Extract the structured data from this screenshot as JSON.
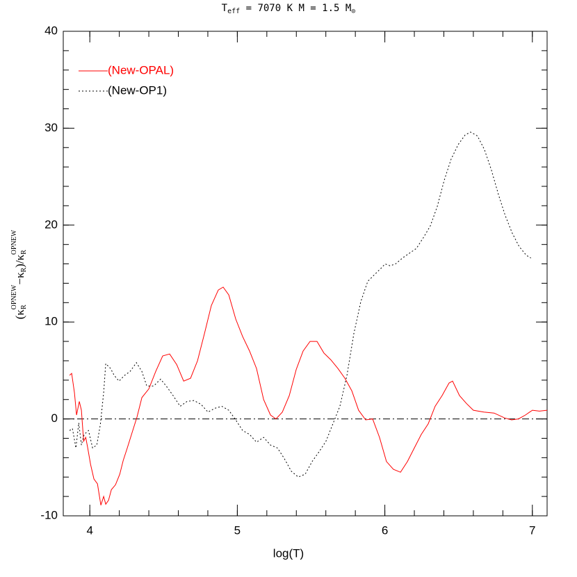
{
  "chart_data": {
    "type": "line",
    "title": [
      "T",
      "eff",
      " = 7070 K  M = 1.5 M",
      "⊙"
    ],
    "xlabel": "log(T)",
    "ylabel": [
      "(κ",
      "R",
      "OPNEW",
      "−κ",
      "R",
      ")/κ",
      "R",
      "OPNEW"
    ],
    "xlim": [
      3.82,
      7.1
    ],
    "ylim": [
      -10,
      40
    ],
    "xticks": [
      4,
      5,
      6,
      7
    ],
    "yticks": [
      -10,
      0,
      10,
      20,
      30,
      40
    ],
    "xminor_step": 0.2,
    "yminor_step": 2,
    "reference_line": 0,
    "legend": "upper left",
    "series": [
      {
        "name": "(New-OPAL)",
        "color": "#ff0000",
        "style": "solid",
        "x": [
          3.863,
          3.877,
          3.896,
          3.91,
          3.929,
          3.943,
          3.958,
          3.972,
          3.986,
          4.005,
          4.028,
          4.052,
          4.075,
          4.094,
          4.108,
          4.127,
          4.146,
          4.174,
          4.203,
          4.226,
          4.254,
          4.283,
          4.32,
          4.353,
          4.4,
          4.447,
          4.494,
          4.541,
          4.589,
          4.636,
          4.683,
          4.73,
          4.777,
          4.824,
          4.871,
          4.904,
          4.942,
          4.989,
          5.036,
          5.083,
          5.13,
          5.178,
          5.225,
          5.262,
          5.305,
          5.352,
          5.399,
          5.446,
          5.493,
          5.54,
          5.587,
          5.634,
          5.682,
          5.729,
          5.776,
          5.822,
          5.87,
          5.917,
          5.964,
          6.011,
          6.058,
          6.106,
          6.153,
          6.2,
          6.247,
          6.294,
          6.341,
          6.388,
          6.435,
          6.459,
          6.506,
          6.553,
          6.6,
          6.671,
          6.741,
          6.812,
          6.859,
          6.906,
          6.953,
          7.0,
          7.048,
          7.1
        ],
        "values": [
          4.5,
          4.7,
          2.7,
          0.4,
          1.8,
          0.9,
          -2.3,
          -1.9,
          -3.0,
          -4.7,
          -6.2,
          -6.7,
          -8.9,
          -8.0,
          -8.8,
          -8.4,
          -7.3,
          -6.8,
          -5.7,
          -4.3,
          -3.0,
          -1.6,
          0.2,
          2.2,
          3.1,
          4.9,
          6.5,
          6.7,
          5.6,
          3.9,
          4.2,
          6.0,
          8.8,
          11.7,
          13.3,
          13.6,
          12.8,
          10.3,
          8.5,
          7.0,
          5.2,
          2.0,
          0.4,
          0,
          0.7,
          2.4,
          5.1,
          7.0,
          8.0,
          8.0,
          6.8,
          6.1,
          5.2,
          4.2,
          2.9,
          0.9,
          -0.1,
          0,
          -1.9,
          -4.4,
          -5.2,
          -5.5,
          -4.4,
          -3.0,
          -1.6,
          -0.5,
          1.3,
          2.4,
          3.7,
          3.9,
          2.4,
          1.6,
          0.9,
          0.7,
          0.6,
          0.1,
          -0.1,
          0,
          0.4,
          0.9,
          0.8,
          0.9
        ]
      },
      {
        "name": "(New-OP1)",
        "color": "#000000",
        "style": "dotted",
        "x": [
          3.863,
          3.882,
          3.906,
          3.925,
          3.943,
          3.962,
          3.991,
          4.019,
          4.047,
          4.071,
          4.094,
          4.108,
          4.141,
          4.165,
          4.198,
          4.236,
          4.273,
          4.316,
          4.353,
          4.386,
          4.433,
          4.48,
          4.518,
          4.565,
          4.612,
          4.659,
          4.706,
          4.754,
          4.801,
          4.848,
          4.895,
          4.942,
          4.989,
          5.036,
          5.083,
          5.13,
          5.178,
          5.225,
          5.272,
          5.319,
          5.366,
          5.413,
          5.46,
          5.507,
          5.554,
          5.601,
          5.648,
          5.695,
          5.743,
          5.79,
          5.837,
          5.884,
          5.931,
          5.978,
          6.002,
          6.035,
          6.073,
          6.12,
          6.167,
          6.214,
          6.261,
          6.308,
          6.355,
          6.402,
          6.449,
          6.497,
          6.544,
          6.581,
          6.628,
          6.675,
          6.722,
          6.769,
          6.816,
          6.863,
          6.91,
          6.958,
          6.99
        ],
        "values": [
          -1.2,
          -1,
          -3,
          -0.4,
          -2.7,
          -1.6,
          -1.2,
          -3.0,
          -2.7,
          -0.6,
          2.7,
          5.7,
          5.2,
          4.5,
          3.9,
          4.5,
          4.9,
          5.8,
          4.9,
          3.4,
          3.4,
          4.1,
          3.4,
          2.4,
          1.3,
          1.8,
          1.9,
          1.5,
          0.7,
          1.1,
          1.3,
          0.9,
          -0.1,
          -1.2,
          -1.6,
          -2.4,
          -1.9,
          -2.7,
          -3.0,
          -4.1,
          -5.4,
          -6.0,
          -5.7,
          -4.4,
          -3.4,
          -2.3,
          -0.5,
          1.3,
          4.5,
          8.8,
          12.1,
          14.2,
          14.9,
          15.6,
          16.0,
          15.8,
          16.0,
          16.6,
          17.1,
          17.6,
          18.7,
          19.9,
          21.9,
          24.6,
          26.8,
          28.3,
          29.3,
          29.6,
          29.2,
          27.8,
          25.7,
          23.2,
          21.0,
          19.2,
          17.8,
          16.9,
          16.6
        ]
      }
    ]
  }
}
